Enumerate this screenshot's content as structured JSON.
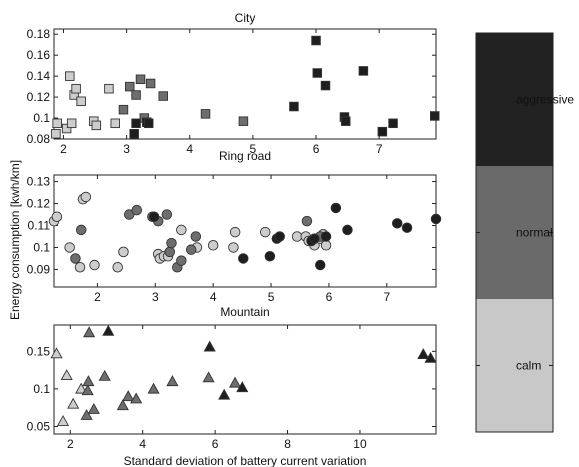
{
  "chart_data": [
    {
      "type": "scatter",
      "title": "City",
      "xlabel": "Ring road",
      "ylabel": "",
      "marker": "square",
      "xlim": [
        1.85,
        7.9
      ],
      "ylim": [
        0.08,
        0.185
      ],
      "xticks": [
        2,
        3,
        4,
        5,
        6,
        7
      ],
      "xtick_labels": [
        "2",
        "3",
        "4",
        "5",
        "6",
        "7"
      ],
      "yticks": [
        0.08,
        0.1,
        0.12,
        0.14,
        0.16,
        0.18
      ],
      "ytick_labels": [
        "0.08",
        "0.1",
        "0.12",
        "0.14",
        "0.16",
        "0.18"
      ],
      "series": [
        {
          "name": "calm",
          "points": [
            [
              1.88,
              0.085
            ],
            [
              1.9,
              0.095
            ],
            [
              2.05,
              0.09
            ],
            [
              2.1,
              0.14
            ],
            [
              2.13,
              0.095
            ],
            [
              2.17,
              0.122
            ],
            [
              2.2,
              0.128
            ],
            [
              2.28,
              0.116
            ],
            [
              2.48,
              0.097
            ],
            [
              2.52,
              0.093
            ],
            [
              2.72,
              0.128
            ],
            [
              2.82,
              0.095
            ]
          ]
        },
        {
          "name": "normal",
          "points": [
            [
              2.95,
              0.108
            ],
            [
              3.05,
              0.13
            ],
            [
              3.15,
              0.122
            ],
            [
              3.22,
              0.137
            ],
            [
              3.28,
              0.1
            ],
            [
              3.38,
              0.133
            ],
            [
              3.58,
              0.121
            ],
            [
              4.25,
              0.104
            ],
            [
              4.85,
              0.097
            ]
          ]
        },
        {
          "name": "aggressive",
          "points": [
            [
              3.12,
              0.085
            ],
            [
              3.15,
              0.095
            ],
            [
              3.32,
              0.096
            ],
            [
              3.35,
              0.095
            ],
            [
              5.65,
              0.111
            ],
            [
              6.0,
              0.174
            ],
            [
              6.02,
              0.143
            ],
            [
              6.15,
              0.131
            ],
            [
              6.45,
              0.101
            ],
            [
              6.47,
              0.097
            ],
            [
              6.75,
              0.145
            ],
            [
              7.05,
              0.087
            ],
            [
              7.22,
              0.095
            ],
            [
              7.88,
              0.102
            ]
          ]
        }
      ]
    },
    {
      "type": "scatter",
      "title": "",
      "xlabel": "Mountain",
      "ylabel": "",
      "marker": "circle",
      "xlim": [
        1.25,
        7.85
      ],
      "ylim": [
        0.082,
        0.133
      ],
      "xticks": [
        2,
        3,
        4,
        5,
        6,
        7
      ],
      "xtick_labels": [
        "2",
        "3",
        "4",
        "5",
        "6",
        "7"
      ],
      "yticks": [
        0.09,
        0.1,
        0.11,
        0.12,
        0.13
      ],
      "ytick_labels": [
        "0.09",
        "0.1",
        "0.11",
        "0.12",
        "0.13"
      ],
      "series": [
        {
          "name": "calm",
          "points": [
            [
              1.25,
              0.112
            ],
            [
              1.3,
              0.114
            ],
            [
              1.52,
              0.1
            ],
            [
              1.7,
              0.091
            ],
            [
              1.75,
              0.122
            ],
            [
              1.8,
              0.123
            ],
            [
              1.95,
              0.092
            ],
            [
              2.35,
              0.091
            ],
            [
              2.45,
              0.098
            ],
            [
              3.05,
              0.097
            ],
            [
              3.08,
              0.095
            ],
            [
              3.15,
              0.096
            ],
            [
              3.22,
              0.096
            ],
            [
              3.45,
              0.108
            ],
            [
              3.72,
              0.1
            ],
            [
              4.0,
              0.101
            ],
            [
              4.35,
              0.1
            ],
            [
              4.38,
              0.107
            ],
            [
              4.9,
              0.107
            ],
            [
              5.45,
              0.105
            ],
            [
              5.6,
              0.105
            ],
            [
              5.65,
              0.103
            ],
            [
              5.75,
              0.101
            ],
            [
              5.85,
              0.104
            ],
            [
              5.9,
              0.106
            ],
            [
              5.95,
              0.101
            ]
          ]
        },
        {
          "name": "normal",
          "points": [
            [
              1.62,
              0.095
            ],
            [
              1.72,
              0.108
            ],
            [
              2.55,
              0.115
            ],
            [
              2.68,
              0.117
            ],
            [
              2.95,
              0.114
            ],
            [
              3.05,
              0.112
            ],
            [
              3.2,
              0.115
            ],
            [
              3.25,
              0.098
            ],
            [
              3.28,
              0.102
            ],
            [
              3.38,
              0.091
            ],
            [
              3.45,
              0.094
            ],
            [
              3.62,
              0.099
            ],
            [
              3.7,
              0.105
            ],
            [
              5.62,
              0.112
            ],
            [
              5.85,
              0.105
            ]
          ]
        },
        {
          "name": "aggressive",
          "points": [
            [
              2.98,
              0.114
            ],
            [
              4.52,
              0.095
            ],
            [
              4.98,
              0.096
            ],
            [
              5.1,
              0.104
            ],
            [
              5.15,
              0.105
            ],
            [
              5.7,
              0.103
            ],
            [
              5.75,
              0.104
            ],
            [
              5.85,
              0.092
            ],
            [
              5.95,
              0.105
            ],
            [
              6.12,
              0.118
            ],
            [
              6.32,
              0.108
            ],
            [
              7.18,
              0.111
            ],
            [
              7.35,
              0.109
            ],
            [
              7.85,
              0.113
            ]
          ]
        }
      ]
    },
    {
      "type": "scatter",
      "title": "",
      "xlabel": "Standard deviation of battery current variation",
      "ylabel": "",
      "marker": "triangle",
      "xlim": [
        1.55,
        12.1
      ],
      "ylim": [
        0.04,
        0.185
      ],
      "xticks": [
        2,
        4,
        6,
        8,
        10
      ],
      "xtick_labels": [
        "2",
        "4",
        "6",
        "8",
        "10"
      ],
      "yticks": [
        0.05,
        0.1,
        0.15
      ],
      "ytick_labels": [
        "0.05",
        "0.1",
        "0.15"
      ],
      "series": [
        {
          "name": "calm",
          "points": [
            [
              1.62,
              0.147
            ],
            [
              1.8,
              0.057
            ],
            [
              1.9,
              0.118
            ],
            [
              2.08,
              0.08
            ],
            [
              2.3,
              0.1
            ]
          ]
        },
        {
          "name": "normal",
          "points": [
            [
              2.45,
              0.065
            ],
            [
              2.48,
              0.098
            ],
            [
              2.5,
              0.11
            ],
            [
              2.52,
              0.175
            ],
            [
              2.65,
              0.073
            ],
            [
              2.95,
              0.117
            ],
            [
              3.45,
              0.078
            ],
            [
              3.6,
              0.09
            ],
            [
              3.82,
              0.087
            ],
            [
              4.3,
              0.1
            ],
            [
              4.82,
              0.11
            ],
            [
              5.82,
              0.115
            ],
            [
              6.55,
              0.108
            ]
          ]
        },
        {
          "name": "aggressive",
          "points": [
            [
              3.05,
              0.177
            ],
            [
              5.85,
              0.156
            ],
            [
              6.25,
              0.092
            ],
            [
              6.75,
              0.102
            ],
            [
              11.75,
              0.146
            ],
            [
              11.95,
              0.141
            ]
          ]
        }
      ]
    }
  ],
  "shared_ylabel": "Energy consumption [kwh/km]",
  "colorbar": {
    "levels": [
      {
        "label": "aggressive",
        "color": "#222222"
      },
      {
        "label": "normal",
        "color": "#6a6a6a"
      },
      {
        "label": "calm",
        "color": "#c8c8c8"
      }
    ]
  },
  "colors": {
    "calm": "#cdcdcd",
    "normal": "#6e6e6e",
    "aggressive": "#1e1e1e"
  }
}
